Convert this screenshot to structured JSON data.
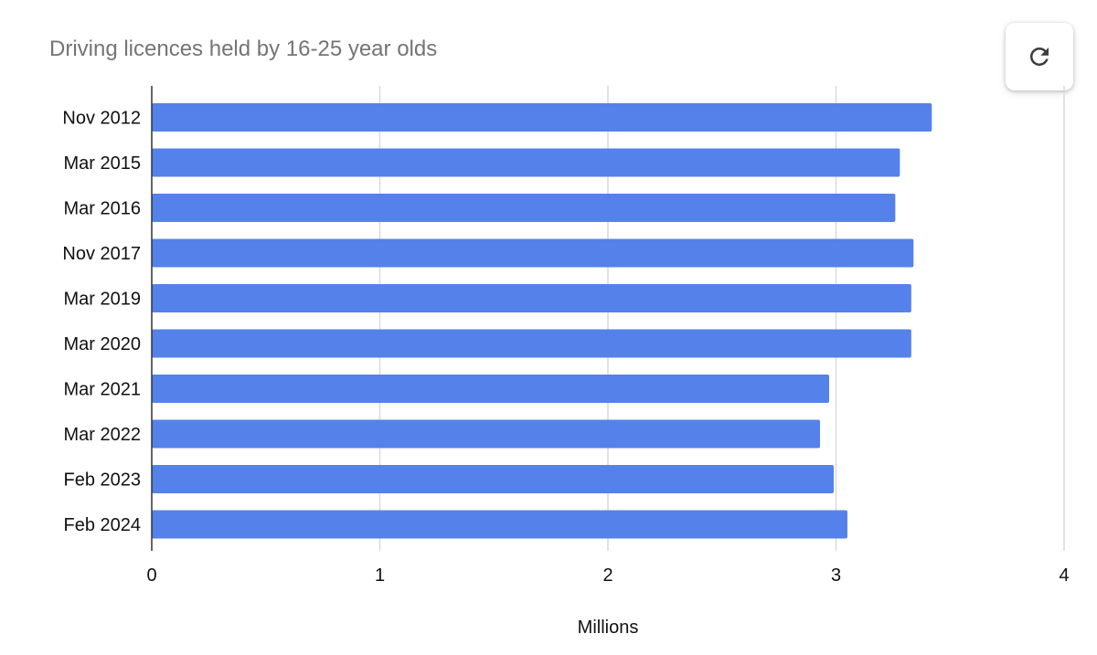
{
  "title": "Driving licences held by 16-25 year olds",
  "refresh_icon": "refresh-icon",
  "colors": {
    "bar": "#5482EA",
    "grid": "#d9d9d9",
    "axis": "#333333",
    "title": "#757575"
  },
  "chart_data": {
    "type": "bar",
    "orientation": "horizontal",
    "title": "Driving licences held by 16-25 year olds",
    "xlabel": "Millions",
    "ylabel": "",
    "xlim": [
      0,
      4
    ],
    "xticks": [
      "0",
      "1",
      "2",
      "3",
      "4"
    ],
    "grid": true,
    "legend": "none",
    "categories": [
      "Nov 2012",
      "Mar 2015",
      "Mar 2016",
      "Nov 2017",
      "Mar 2019",
      "Mar 2020",
      "Mar 2021",
      "Mar 2022",
      "Feb 2023",
      "Feb 2024"
    ],
    "values": [
      3.42,
      3.28,
      3.26,
      3.34,
      3.33,
      3.33,
      2.97,
      2.93,
      2.99,
      3.05
    ]
  }
}
